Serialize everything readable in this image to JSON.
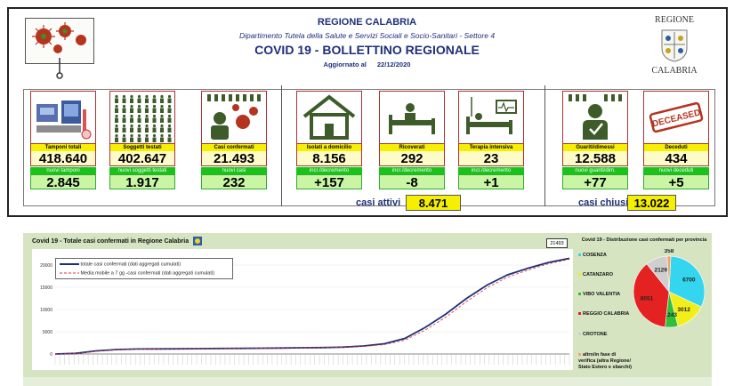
{
  "header": {
    "region": "REGIONE CALABRIA",
    "department": "Dipartimento Tutela della Salute e Servizi Sociali e Socio-Sanitari - Settore 4",
    "title": "COVID 19 - BOLLETTINO REGIONALE",
    "updated_label": "Aggiornato al",
    "updated_date": "22/12/2020",
    "logo_top": "REGIONE",
    "logo_bottom": "CALABRIA"
  },
  "cards": [
    {
      "label": "Tamponi totali",
      "value": "418.640",
      "sub_label": "nuovi tamponi",
      "sub_value": "2.845",
      "icon": "lab-icon"
    },
    {
      "label": "Soggetti testati",
      "value": "402.647",
      "sub_label": "nuovi soggetti testati",
      "sub_value": "1.917",
      "icon": "people-grid-icon"
    },
    {
      "label": "Casi confermati",
      "value": "21.493",
      "sub_label": "nuovi casi",
      "sub_value": "232",
      "icon": "virus-person-icon"
    },
    {
      "label": "Isolati a domicilio",
      "value": "8.156",
      "sub_label": "incr./decremento",
      "sub_value": "+157",
      "icon": "house-icon"
    },
    {
      "label": "Ricoverati",
      "value": "292",
      "sub_label": "incr./decremento",
      "sub_value": "-8",
      "icon": "hospital-bed-icon"
    },
    {
      "label": "Terapia intensiva",
      "value": "23",
      "sub_label": "incr./decremento",
      "sub_value": "+1",
      "icon": "icu-icon"
    },
    {
      "label": "Guariti/dimessi",
      "value": "12.588",
      "sub_label": "nuovi guariti/dim.",
      "sub_value": "+77",
      "icon": "recovered-icon"
    },
    {
      "label": "Deceduti",
      "value": "434",
      "sub_label": "nuovi deceduti",
      "sub_value": "+5",
      "icon": "deceased-stamp-icon"
    }
  ],
  "deceased_stamp": "DECEASED",
  "summary": {
    "active_label": "casi attivi",
    "active_value": "8.471",
    "closed_label": "casi chiusi",
    "closed_value": "13.022"
  },
  "chart": {
    "title": "Covid 19 - Totale casi confermati in Regione Calabria",
    "badge": "21493",
    "legend": [
      "totale casi confermati (dati aggregati cumulati)",
      "Media mobile a 7 gg -casi confermati (dati aggregati cumulati)"
    ],
    "yticks": [
      "20000",
      "15000",
      "10000",
      "5000",
      "0"
    ]
  },
  "pie": {
    "title": "Covid 19 - Distribuzione casi confermati per provincia",
    "provinces": [
      {
        "name": "COSENZA",
        "color": "#33d6ee"
      },
      {
        "name": "CATANZARO",
        "color": "#f2ee1a"
      },
      {
        "name": "VIBO VALENTIA",
        "color": "#2fbf3a"
      },
      {
        "name": "REGGIO CALABRIA",
        "color": "#e52222"
      },
      {
        "name": "CROTONE",
        "color": "#cfcfcf"
      },
      {
        "name": "altro/in fase di verifica (altra Regione/ Stato Estero e sbarchi)",
        "color": "#f2a36a"
      }
    ],
    "values": [
      "358",
      "2129",
      "6700",
      "8051",
      "3012",
      "1243"
    ]
  },
  "chart_data": [
    {
      "type": "line",
      "title": "Covid 19 - Totale casi confermati in Regione Calabria",
      "ylim": [
        0,
        22000
      ],
      "series": [
        {
          "name": "totale casi confermati (dati aggregati cumulati)",
          "values": [
            0,
            150,
            700,
            1000,
            1120,
            1150,
            1170,
            1200,
            1230,
            1260,
            1300,
            1350,
            1400,
            1450,
            1550,
            1800,
            2300,
            3500,
            6000,
            9000,
            12500,
            15500,
            17800,
            19300,
            20600,
            21493
          ]
        },
        {
          "name": "Media mobile a 7 gg -casi confermati (dati aggregati cumulati)",
          "values": [
            0,
            100,
            600,
            950,
            1100,
            1140,
            1160,
            1190,
            1220,
            1250,
            1290,
            1340,
            1390,
            1440,
            1520,
            1700,
            2100,
            3100,
            5400,
            8300,
            11800,
            14900,
            17300,
            18900,
            20300,
            21300
          ]
        }
      ]
    },
    {
      "type": "pie",
      "title": "Covid 19 - Distribuzione casi confermati per provincia",
      "categories": [
        "COSENZA",
        "CATANZARO",
        "VIBO VALENTIA",
        "REGGIO CALABRIA",
        "CROTONE",
        "altro/in fase di verifica"
      ],
      "values": [
        6700,
        3012,
        1243,
        8051,
        2129,
        358
      ]
    }
  ]
}
